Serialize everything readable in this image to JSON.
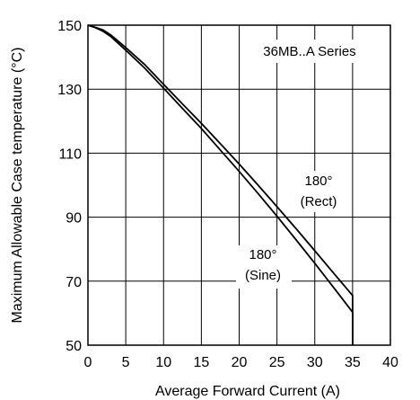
{
  "chart_data": {
    "type": "line",
    "title": "",
    "xlabel": "Average Forward Current (A)",
    "ylabel": "Maximum Allowable Case temperature (°C)",
    "xlim": [
      0,
      40
    ],
    "ylim": [
      50,
      150
    ],
    "x_ticks": [
      0,
      5,
      10,
      15,
      20,
      25,
      30,
      35,
      40
    ],
    "y_ticks": [
      50,
      70,
      90,
      110,
      130,
      150
    ],
    "grid": true,
    "series": [
      {
        "name": "180° (Rect)",
        "x": [
          0,
          1,
          2,
          3,
          5,
          7.5,
          10,
          12.5,
          15,
          17.5,
          20,
          22.5,
          25,
          27.5,
          30,
          32.5,
          35,
          35
        ],
        "y": [
          150,
          149.3,
          148.5,
          147,
          143,
          137.7,
          131.5,
          125.4,
          119.3,
          113,
          106.6,
          100,
          93.3,
          86.5,
          79.5,
          72.5,
          65.5,
          50
        ]
      },
      {
        "name": "180° (Sine)",
        "x": [
          0,
          1,
          2,
          3,
          5,
          7.5,
          10,
          12.5,
          15,
          17.5,
          20,
          22.5,
          25,
          27.5,
          30,
          32.5,
          35,
          35
        ],
        "y": [
          150,
          149.2,
          148.1,
          146.5,
          142.2,
          136.6,
          130.3,
          124,
          117.7,
          111,
          104.3,
          97.4,
          90.3,
          83,
          75.6,
          68,
          60.3,
          50
        ]
      }
    ],
    "annotations": {
      "series_label": "36MB..A Series",
      "rect_line1": "180°",
      "rect_line2": "(Rect)",
      "sine_line1": "180°",
      "sine_line2": "(Sine)"
    }
  }
}
